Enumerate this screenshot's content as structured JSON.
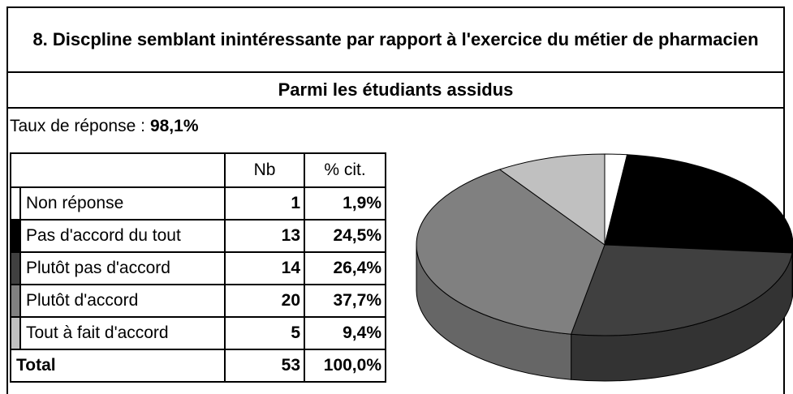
{
  "title": "8. Discpline semblant inintéressante par rapport à l'exercice du métier de pharmacien",
  "subtitle": "Parmi les étudiants assidus",
  "response_rate": {
    "label": "Taux de réponse :",
    "value": "98,1%"
  },
  "chart_data": {
    "type": "pie",
    "columns": [
      "Nb",
      "% cit."
    ],
    "categories": [
      "Non réponse",
      "Pas d'accord du tout",
      "Plutôt pas d'accord",
      "Plutôt d'accord",
      "Tout à fait d'accord"
    ],
    "counts": [
      1,
      13,
      14,
      20,
      5
    ],
    "values": [
      1.9,
      24.5,
      26.4,
      37.7,
      9.4
    ],
    "value_labels": [
      "1,9%",
      "24,5%",
      "26,4%",
      "37,7%",
      "9,4%"
    ],
    "colors": [
      "#ffffff",
      "#000000",
      "#404040",
      "#808080",
      "#c0c0c0"
    ],
    "total": {
      "label": "Total",
      "count": 53,
      "value": 100,
      "value_label": "100,0%"
    }
  }
}
